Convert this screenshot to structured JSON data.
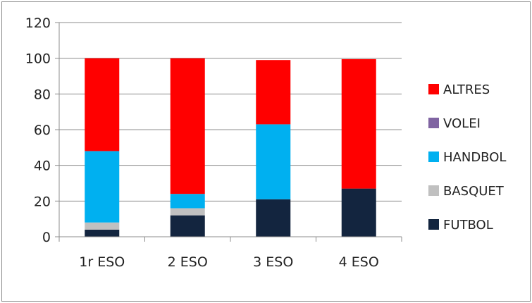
{
  "chart_data": {
    "type": "bar",
    "stacked": true,
    "categories": [
      "1r ESO",
      "2 ESO",
      "3 ESO",
      "4 ESO"
    ],
    "series": [
      {
        "name": "FUTBOL",
        "color": "#13253f",
        "values": [
          4,
          12,
          21,
          27
        ]
      },
      {
        "name": "BASQUET",
        "color": "#c0c0c0",
        "values": [
          4,
          4,
          0,
          0
        ]
      },
      {
        "name": "HANDBOL",
        "color": "#00b0f0",
        "values": [
          40,
          8,
          42,
          0
        ]
      },
      {
        "name": "VOLEI",
        "color": "#8064a2",
        "values": [
          0,
          0,
          0,
          0
        ]
      },
      {
        "name": "ALTRES",
        "color": "#ff0000",
        "values": [
          52,
          76,
          36,
          72.5
        ]
      }
    ],
    "ylim": [
      0,
      120
    ],
    "yticks": [
      "0",
      "20",
      "40",
      "60",
      "80",
      "100",
      "120"
    ],
    "grid": true,
    "legend_position": "right",
    "legend_order": [
      "ALTRES",
      "VOLEI",
      "HANDBOL",
      "BASQUET",
      "FUTBOL"
    ]
  }
}
